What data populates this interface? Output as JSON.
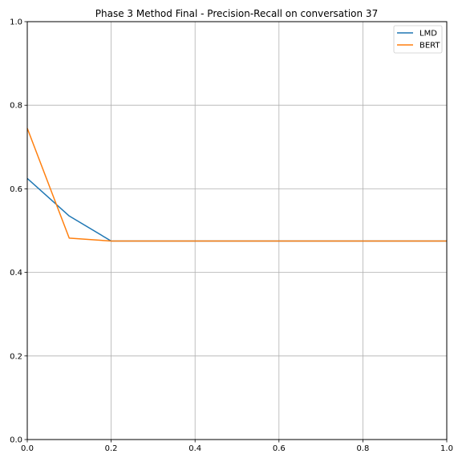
{
  "chart_data": {
    "type": "line",
    "title": "Phase 3 Method Final - Precision-Recall on conversation 37",
    "xlabel": "",
    "ylabel": "",
    "xlim": [
      0,
      1
    ],
    "ylim": [
      0,
      1
    ],
    "xticks": [
      "0.0",
      "0.2",
      "0.4",
      "0.6",
      "0.8",
      "1.0"
    ],
    "yticks": [
      "0.0",
      "0.2",
      "0.4",
      "0.6",
      "0.8",
      "1.0"
    ],
    "grid": true,
    "legend_position": "top-right",
    "series": [
      {
        "name": "LMD",
        "color": "#1f77b4",
        "x": [
          0.0,
          0.1,
          0.2,
          0.3,
          0.4,
          0.5,
          0.6,
          0.7,
          0.8,
          0.9,
          1.0
        ],
        "y": [
          0.625,
          0.535,
          0.475,
          0.475,
          0.475,
          0.475,
          0.475,
          0.475,
          0.475,
          0.475,
          0.475
        ]
      },
      {
        "name": "BERT",
        "color": "#ff7f0e",
        "x": [
          0.0,
          0.1,
          0.2,
          0.3,
          0.4,
          0.5,
          0.6,
          0.7,
          0.8,
          0.9,
          1.0
        ],
        "y": [
          0.745,
          0.482,
          0.475,
          0.475,
          0.475,
          0.475,
          0.475,
          0.475,
          0.475,
          0.475,
          0.475
        ]
      }
    ]
  }
}
